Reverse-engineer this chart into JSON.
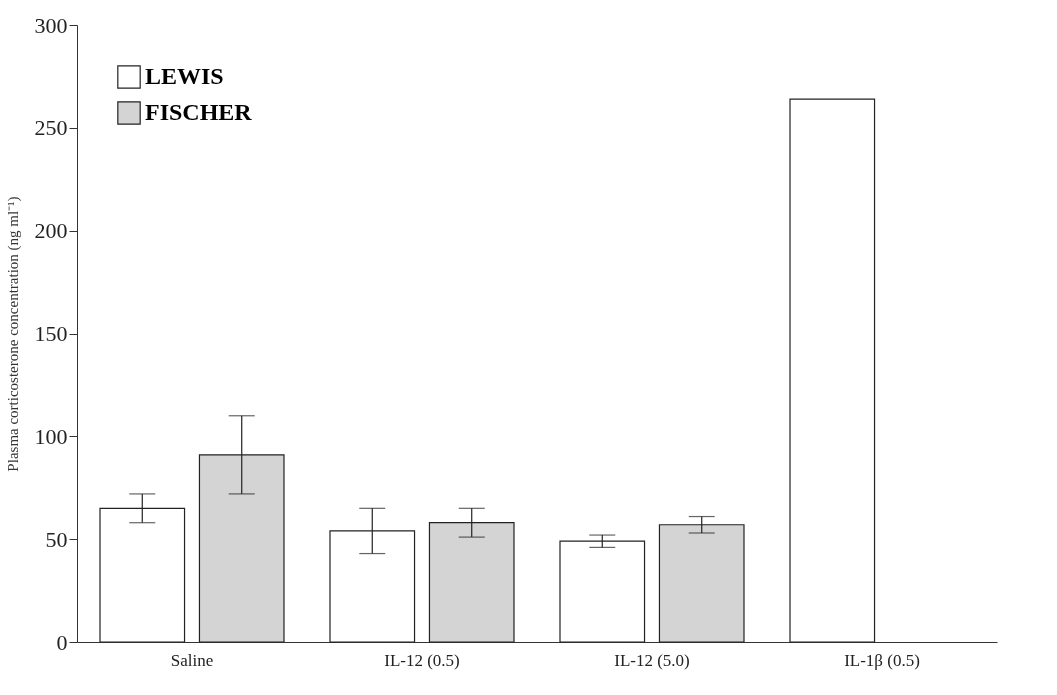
{
  "chart_data": {
    "type": "bar",
    "ylabel": "Plasma corticosterone concentration (ng ml⁻¹)",
    "categories": [
      "Saline",
      "IL-12 (0.5)",
      "IL-12 (5.0)",
      "IL-1β (0.5)"
    ],
    "series": [
      {
        "name": "LEWIS",
        "color": "#ffffff",
        "values": [
          65,
          54,
          49,
          264
        ],
        "errors": [
          [
            58,
            72
          ],
          [
            43,
            65
          ],
          [
            46,
            52
          ],
          null
        ]
      },
      {
        "name": "FISCHER",
        "color": "#d4d4d4",
        "values": [
          91,
          58,
          57,
          null
        ],
        "errors": [
          [
            72,
            110
          ],
          [
            51,
            65
          ],
          [
            53,
            61
          ],
          null
        ]
      }
    ],
    "ylim": [
      0,
      300
    ],
    "yticks": [
      0,
      50,
      100,
      150,
      200,
      250,
      300
    ],
    "grid": false,
    "legend": "top left"
  }
}
